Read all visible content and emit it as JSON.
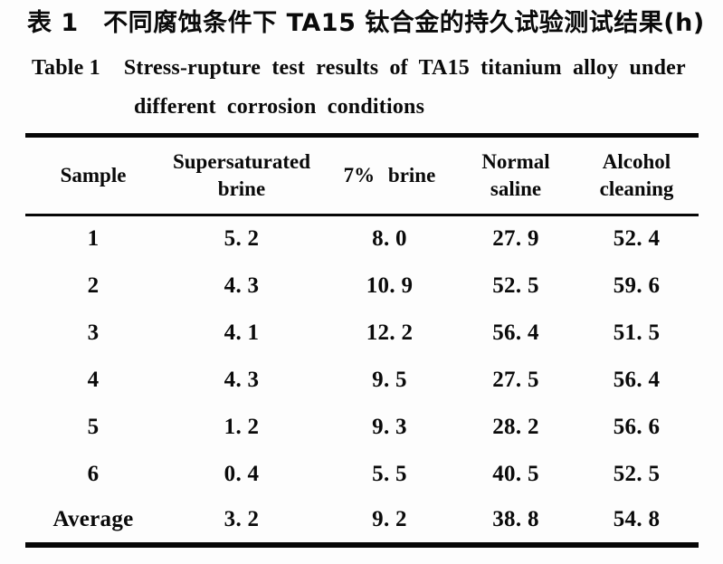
{
  "caption": {
    "zh": "表 1　不同腐蚀条件下 TA15 钛合金的持久试验测试结果(h)",
    "en_label": "Table 1",
    "en_text_line1": "Stress-rupture test results of TA15 titanium alloy under",
    "en_text_line2": "different corrosion conditions"
  },
  "table": {
    "header": {
      "sample": "Sample",
      "supersaturated_line1": "Supersaturated",
      "supersaturated_line2": "brine",
      "brine7": "7% brine",
      "normal_line1": "Normal",
      "normal_line2": "saline",
      "alcohol_line1": "Alcohol",
      "alcohol_line2": "cleaning"
    },
    "rows": [
      [
        "1",
        "5. 2",
        "8. 0",
        "27. 9",
        "52. 4"
      ],
      [
        "2",
        "4. 3",
        "10. 9",
        "52. 5",
        "59. 6"
      ],
      [
        "3",
        "4. 1",
        "12. 2",
        "56. 4",
        "51. 5"
      ],
      [
        "4",
        "4. 3",
        "9. 5",
        "27. 5",
        "56. 4"
      ],
      [
        "5",
        "1. 2",
        "9. 3",
        "28. 2",
        "56. 6"
      ],
      [
        "6",
        "0. 4",
        "5. 5",
        "40. 5",
        "52. 5"
      ],
      [
        "Average",
        "3. 2",
        "9. 2",
        "38. 8",
        "54. 8"
      ]
    ]
  },
  "chart_data": {
    "type": "table",
    "title_zh": "表1 不同腐蚀条件下TA15钛合金的持久试验测试结果(h)",
    "title_en": "Table 1 Stress-rupture test results of TA15 titanium alloy under different corrosion conditions",
    "unit": "h",
    "columns": [
      "Sample",
      "Supersaturated brine",
      "7% brine",
      "Normal saline",
      "Alcohol cleaning"
    ],
    "rows": [
      {
        "sample": "1",
        "supersaturated_brine": 5.2,
        "brine_7pct": 8.0,
        "normal_saline": 27.9,
        "alcohol_cleaning": 52.4
      },
      {
        "sample": "2",
        "supersaturated_brine": 4.3,
        "brine_7pct": 10.9,
        "normal_saline": 52.5,
        "alcohol_cleaning": 59.6
      },
      {
        "sample": "3",
        "supersaturated_brine": 4.1,
        "brine_7pct": 12.2,
        "normal_saline": 56.4,
        "alcohol_cleaning": 51.5
      },
      {
        "sample": "4",
        "supersaturated_brine": 4.3,
        "brine_7pct": 9.5,
        "normal_saline": 27.5,
        "alcohol_cleaning": 56.4
      },
      {
        "sample": "5",
        "supersaturated_brine": 1.2,
        "brine_7pct": 9.3,
        "normal_saline": 28.2,
        "alcohol_cleaning": 56.6
      },
      {
        "sample": "6",
        "supersaturated_brine": 0.4,
        "brine_7pct": 5.5,
        "normal_saline": 40.5,
        "alcohol_cleaning": 52.5
      },
      {
        "sample": "Average",
        "supersaturated_brine": 3.2,
        "brine_7pct": 9.2,
        "normal_saline": 38.8,
        "alcohol_cleaning": 54.8
      }
    ]
  }
}
